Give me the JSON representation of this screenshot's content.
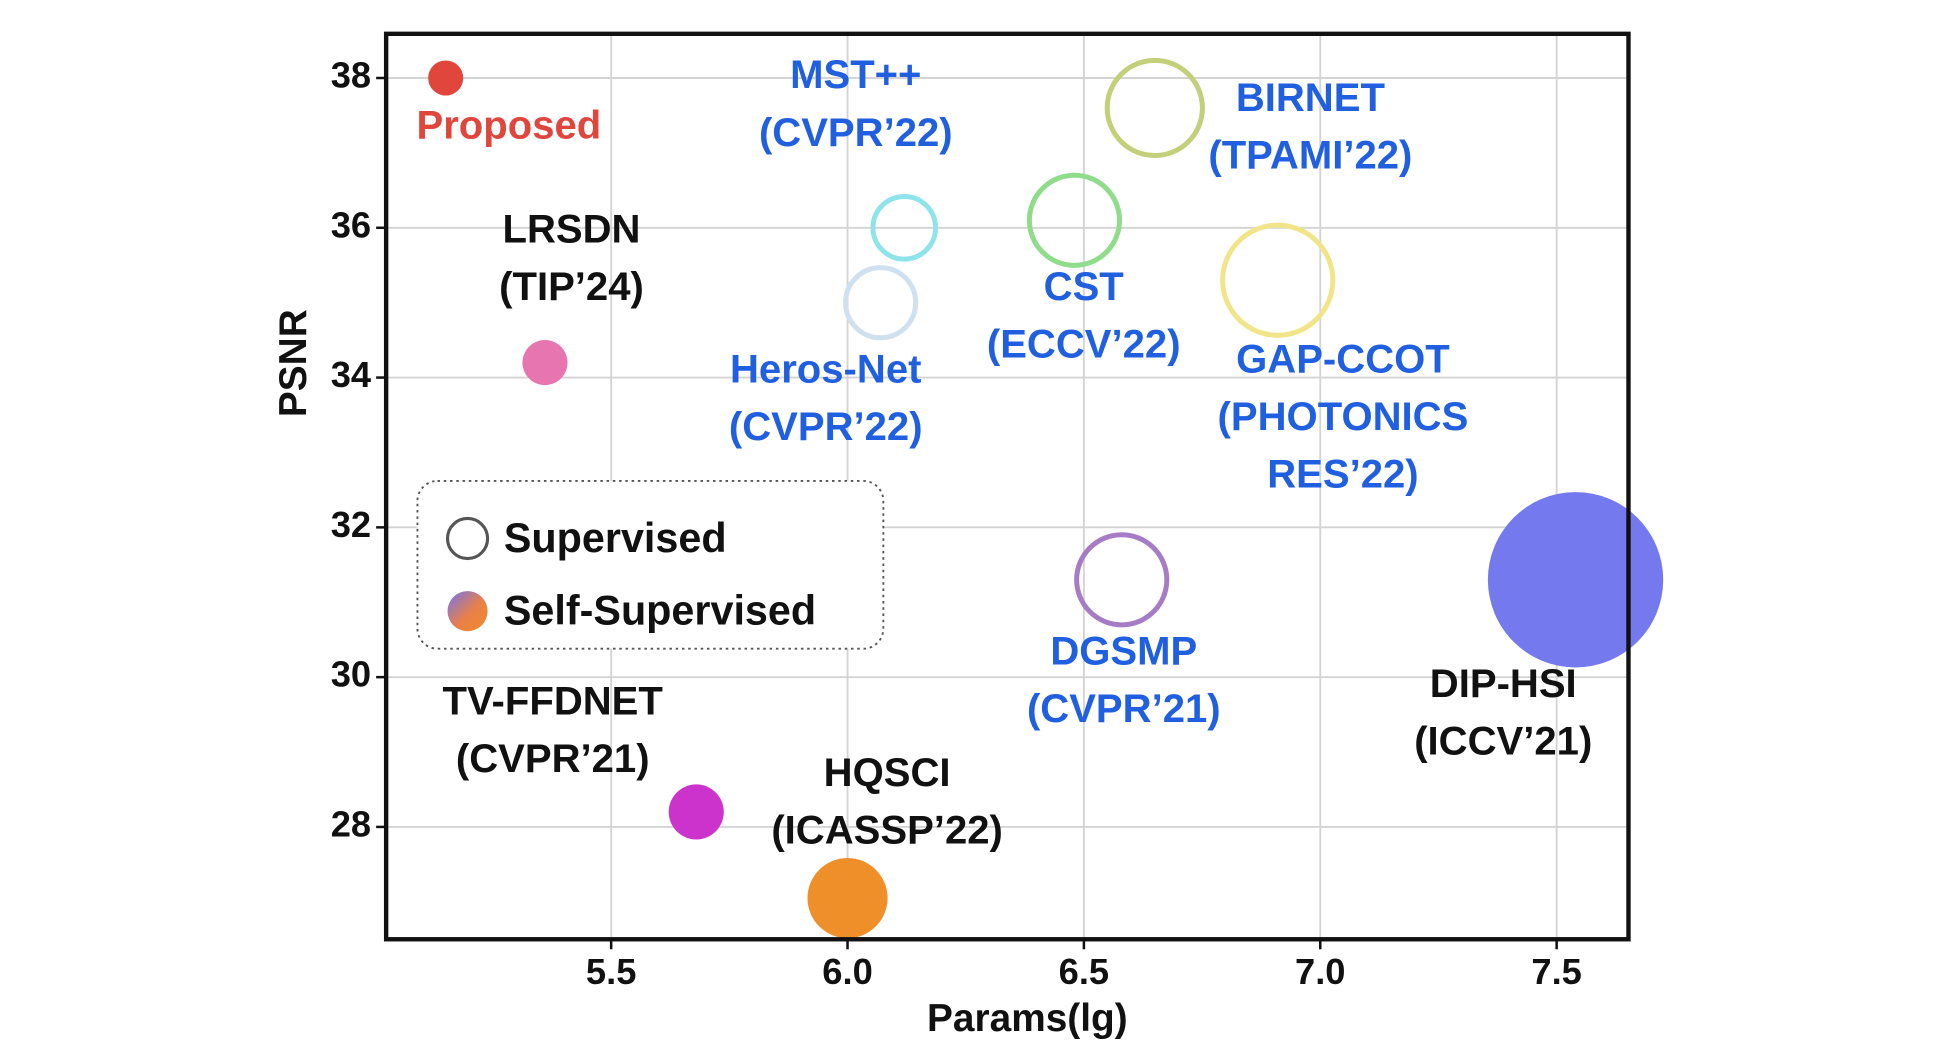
{
  "chart_data": {
    "type": "scatter",
    "x_label": "Params(lg)",
    "y_label": "PSNR",
    "xlim": [
      5.024,
      7.652
    ],
    "ylim": [
      26.5,
      38.59
    ],
    "xticks": [
      5.5,
      {
        "value": 6,
        "label": "6.0"
      },
      6.5,
      {
        "value": 7,
        "label": "7.0"
      },
      7.5
    ],
    "yticks": [
      28,
      30,
      32,
      34,
      36,
      38
    ],
    "grid": true,
    "points": [
      {
        "label": [
          "Proposed"
        ],
        "x": 5.15,
        "y": 38.0,
        "size": 14,
        "color": "#e0463c",
        "filled": true,
        "label_color": "#e0463c"
      },
      {
        "label": [
          "LRSDN",
          "(TIP’24)"
        ],
        "x": 5.36,
        "y": 34.2,
        "size": 18,
        "color": "#e776b0",
        "filled": true,
        "label_color": "#111111"
      },
      {
        "label": [
          "TV-FFDNET",
          "(CVPR’21)"
        ],
        "x": 5.68,
        "y": 28.2,
        "size": 22,
        "color": "#cc33cc",
        "filled": true,
        "label_color": "#111111"
      },
      {
        "label": [
          "HQSCI",
          "(ICASSP’22)"
        ],
        "x": 6.0,
        "y": 27.05,
        "size": 32,
        "color": "#ef8f2a",
        "filled": true,
        "label_color": "#111111"
      },
      {
        "label": [
          "MST++",
          "(CVPR’22)"
        ],
        "x": 6.12,
        "y": 36.0,
        "size": 25,
        "color": "#8fe4ec",
        "filled": false,
        "label_color": "#1f5fe0"
      },
      {
        "label": [
          "Heros-Net",
          "(CVPR’22)"
        ],
        "x": 6.07,
        "y": 35.0,
        "size": 28,
        "color": "#cfe0ee",
        "filled": false,
        "label_color": "#1f5fe0"
      },
      {
        "label": [
          "CST",
          "(ECCV’22)"
        ],
        "x": 6.48,
        "y": 36.1,
        "size": 36,
        "color": "#8fdc8a",
        "filled": false,
        "label_color": "#1f5fe0"
      },
      {
        "label": [
          "BIRNET",
          "(TPAMI’22)"
        ],
        "x": 6.65,
        "y": 37.6,
        "size": 38,
        "color": "#c4cf7a",
        "filled": false,
        "label_color": "#1f5fe0"
      },
      {
        "label": [
          "GAP-CCOT",
          "(PHOTONICS",
          "RES’22)"
        ],
        "x": 6.91,
        "y": 35.3,
        "size": 44,
        "color": "#f1e58a",
        "filled": false,
        "label_color": "#1f5fe0"
      },
      {
        "label": [
          "DGSMP",
          "(CVPR’21)"
        ],
        "x": 6.58,
        "y": 31.3,
        "size": 36,
        "color": "#a77cc6",
        "filled": false,
        "label_color": "#1f5fe0"
      },
      {
        "label": [
          "DIP-HSI",
          "(ICCV’21)"
        ],
        "x": 7.54,
        "y": 31.3,
        "size": 70,
        "color": "#7479ee",
        "filled": true,
        "label_color": "#111111"
      }
    ],
    "legend": [
      {
        "name": "Supervised",
        "style": "ring"
      },
      {
        "name": "Self-Supervised",
        "style": "gradient"
      }
    ]
  }
}
